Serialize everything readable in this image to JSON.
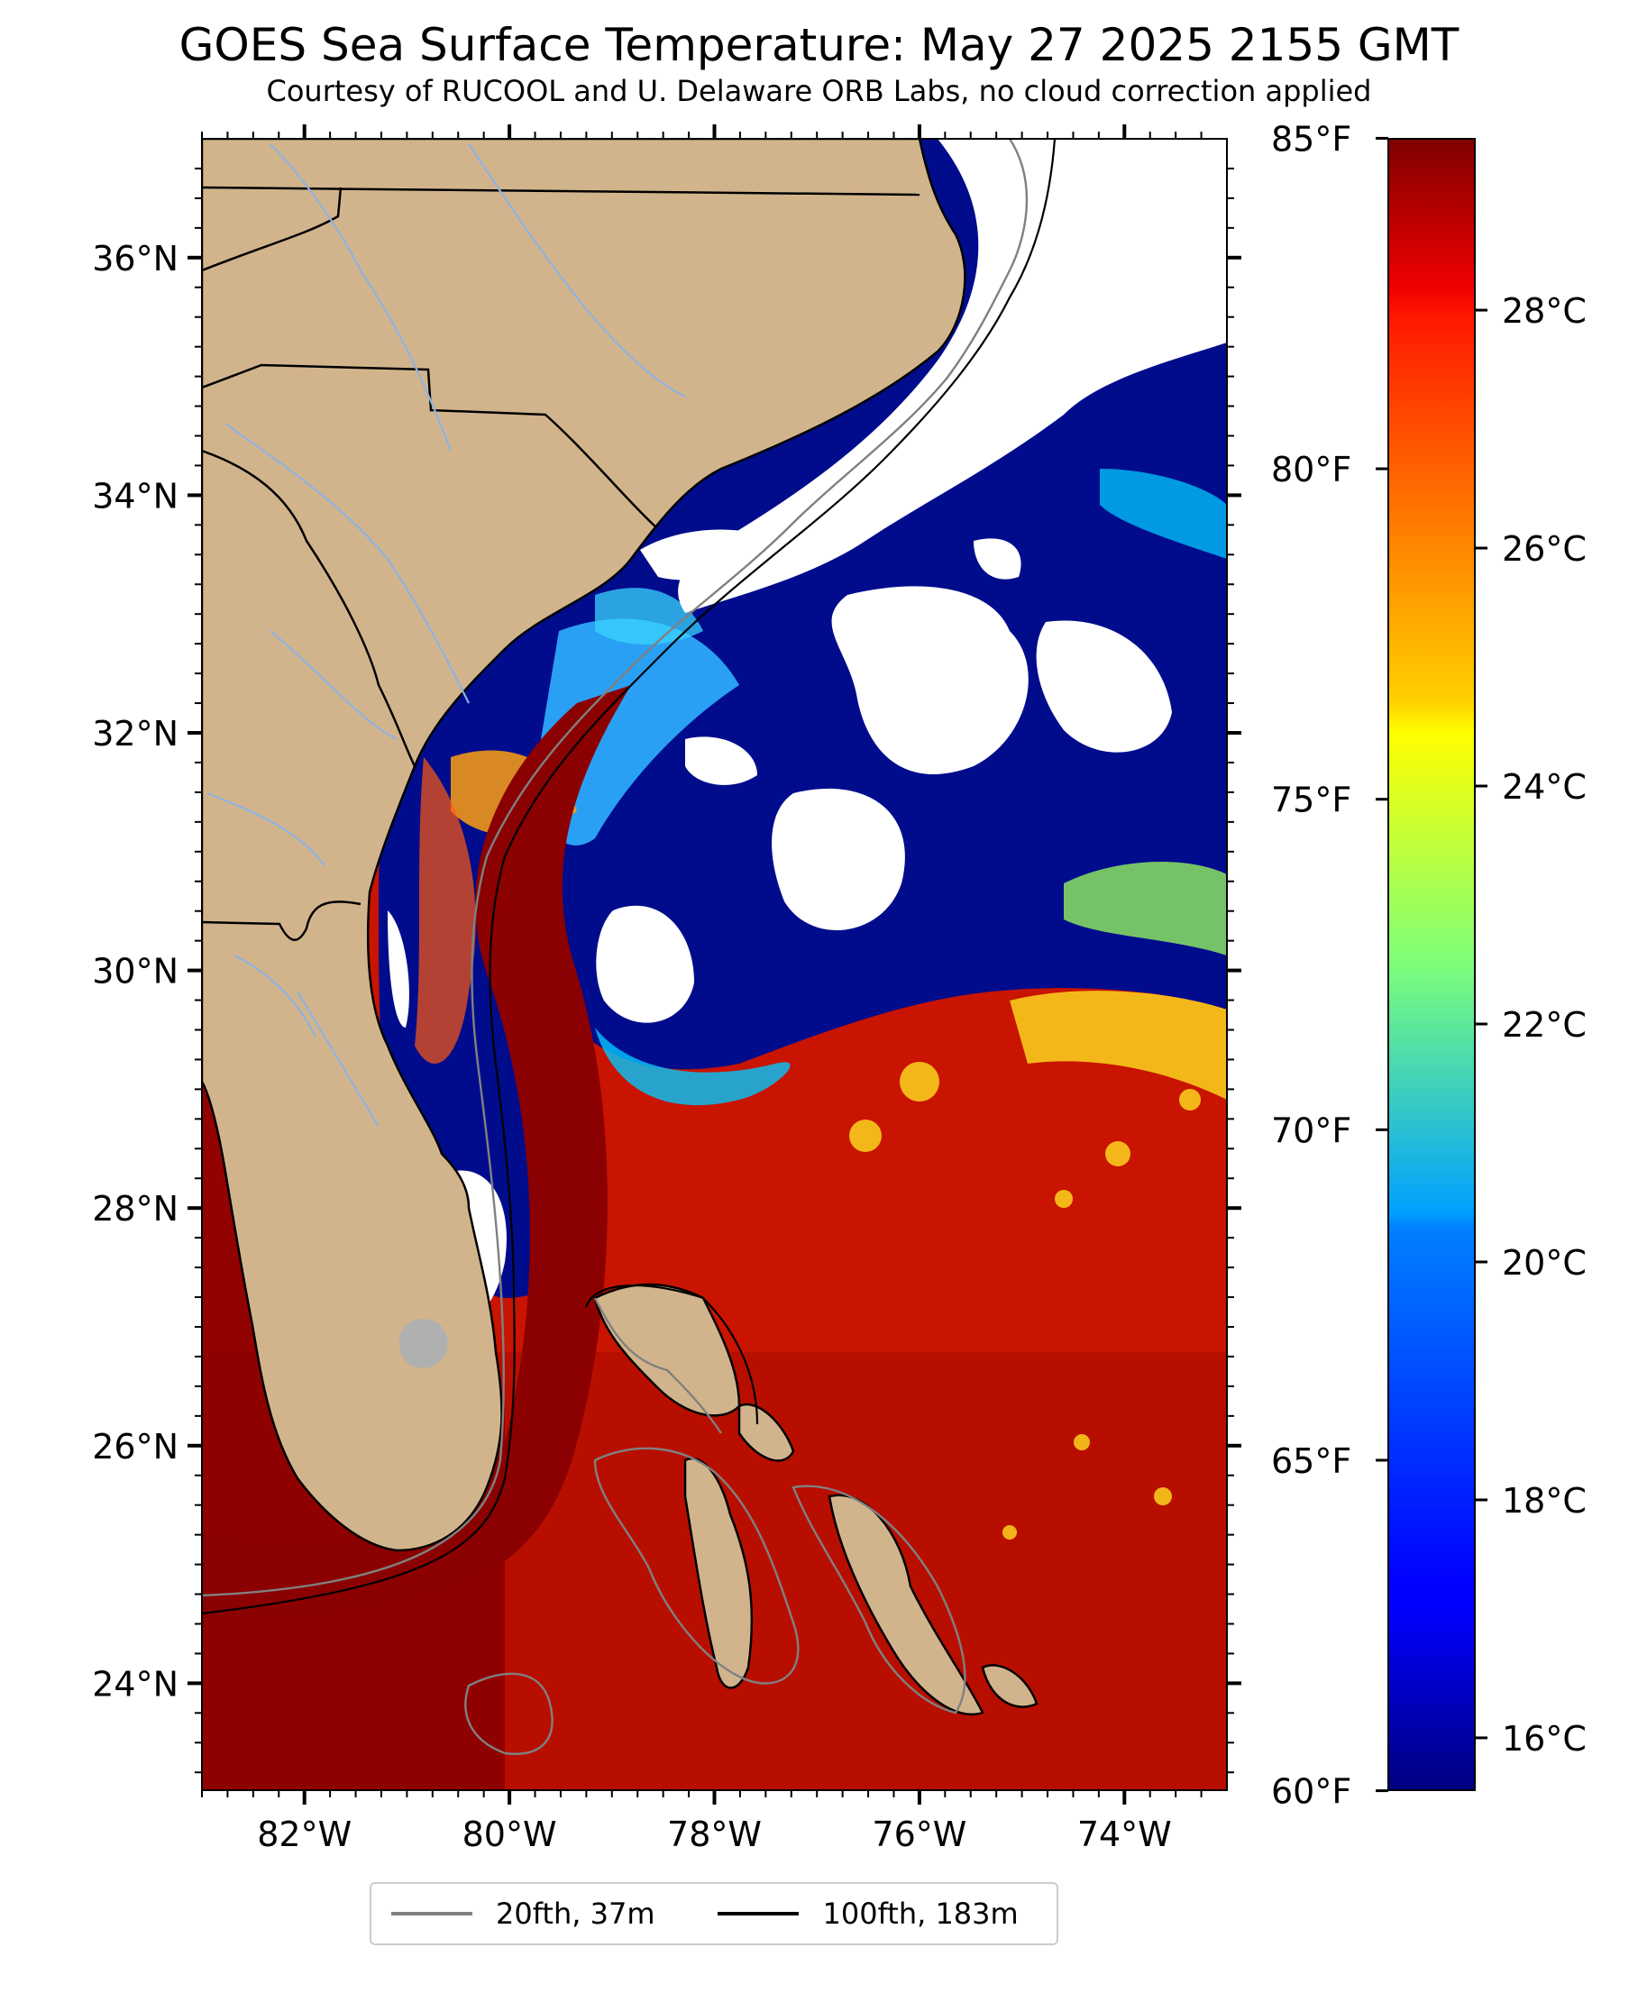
{
  "header": {
    "title": "GOES Sea Surface Temperature: May 27 2025 2155 GMT",
    "subtitle": "Courtesy of RUCOOL and U. Delaware ORB Labs, no cloud correction applied"
  },
  "map": {
    "lon_range": [
      -83,
      -73
    ],
    "lat_range": [
      23.1,
      37
    ],
    "lat_ticks": [
      {
        "value": 36,
        "label": "36°N"
      },
      {
        "value": 34,
        "label": "34°N"
      },
      {
        "value": 32,
        "label": "32°N"
      },
      {
        "value": 30,
        "label": "30°N"
      },
      {
        "value": 28,
        "label": "28°N"
      },
      {
        "value": 26,
        "label": "26°N"
      },
      {
        "value": 24,
        "label": "24°N"
      }
    ],
    "lon_ticks": [
      {
        "value": -82,
        "label": "82°W"
      },
      {
        "value": -80,
        "label": "80°W"
      },
      {
        "value": -78,
        "label": "78°W"
      },
      {
        "value": -76,
        "label": "76°W"
      },
      {
        "value": -74,
        "label": "74°W"
      }
    ],
    "colors": {
      "land": "#d2b48c",
      "cloud": "#ffffff",
      "warm_water": "#c81400",
      "gulf_stream": "#8b0000",
      "cold_water": "#000c8c",
      "isobath_20fth": "#808080",
      "isobath_100fth": "#000000",
      "rivers": "#8fb3de"
    }
  },
  "colorbar": {
    "colormap": "jet",
    "range_c": [
      15.56,
      29.44
    ],
    "celsius_ticks": [
      {
        "value": 28,
        "label": "28°C"
      },
      {
        "value": 26,
        "label": "26°C"
      },
      {
        "value": 24,
        "label": "24°C"
      },
      {
        "value": 22,
        "label": "22°C"
      },
      {
        "value": 20,
        "label": "20°C"
      },
      {
        "value": 18,
        "label": "18°C"
      },
      {
        "value": 16,
        "label": "16°C"
      }
    ],
    "fahrenheit_ticks": [
      {
        "value": 85,
        "label": "85°F"
      },
      {
        "value": 80,
        "label": "80°F"
      },
      {
        "value": 75,
        "label": "75°F"
      },
      {
        "value": 70,
        "label": "70°F"
      },
      {
        "value": 65,
        "label": "65°F"
      },
      {
        "value": 60,
        "label": "60°F"
      }
    ]
  },
  "legend": {
    "items": [
      {
        "label": "20fth, 37m",
        "color": "#808080"
      },
      {
        "label": "100fth, 183m",
        "color": "#000000"
      }
    ]
  }
}
